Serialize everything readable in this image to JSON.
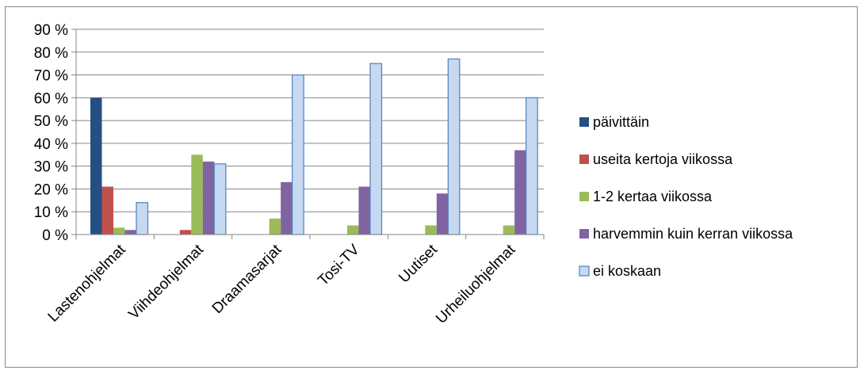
{
  "chart_data": {
    "type": "bar",
    "categories": [
      "Lastenohjelmat",
      "Viihdeohjelmat",
      "Draamasarjat",
      "Tosi-TV",
      "Uutiset",
      "Urheiluohjelmat"
    ],
    "series": [
      {
        "name": "päivittäin",
        "color": "#254F83",
        "values": [
          60,
          0,
          0,
          0,
          0,
          0
        ]
      },
      {
        "name": "useita kertoja viikossa",
        "color": "#C0504D",
        "values": [
          21,
          2,
          0,
          0,
          0,
          0
        ]
      },
      {
        "name": "1-2 kertaa viikossa",
        "color": "#9BBB59",
        "values": [
          3,
          35,
          7,
          4,
          4,
          4
        ]
      },
      {
        "name": "harvemmin kuin kerran viikossa",
        "color": "#8064A2",
        "values": [
          2,
          32,
          23,
          21,
          18,
          37
        ]
      },
      {
        "name": "ei koskaan",
        "color": "#C6D9F1",
        "values": [
          14,
          31,
          70,
          75,
          77,
          60
        ]
      }
    ],
    "y_ticks": [
      "0 %",
      "10 %",
      "20 %",
      "30 %",
      "40 %",
      "50 %",
      "60 %",
      "70 %",
      "80 %",
      "90 %"
    ],
    "ylim": [
      0,
      90
    ],
    "grid": true,
    "legend_position": "right",
    "title": "",
    "xlabel": "",
    "ylabel": ""
  }
}
